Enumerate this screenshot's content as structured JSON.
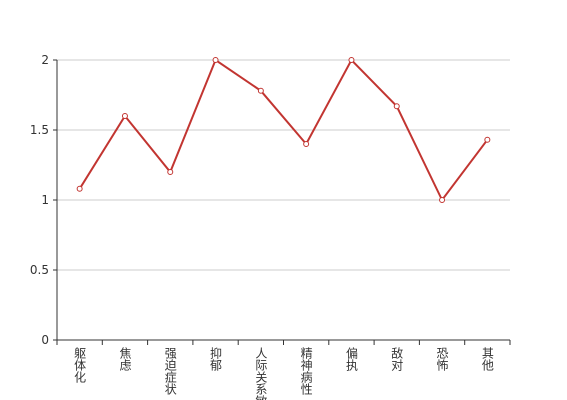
{
  "chart_data": {
    "type": "line",
    "categories": [
      "躯体化",
      "焦虑",
      "强迫症状",
      "抑郁",
      "人际关系敏感",
      "精神病性",
      "偏执",
      "敌对",
      "恐怖",
      "其他"
    ],
    "values": [
      1.08,
      1.6,
      1.2,
      2.0,
      1.78,
      1.4,
      2.0,
      1.67,
      1.0,
      1.43
    ],
    "color": "#c23531",
    "ylim": [
      0,
      2
    ],
    "yticks": [
      0,
      0.5,
      1,
      1.5,
      2
    ],
    "grid": true
  }
}
